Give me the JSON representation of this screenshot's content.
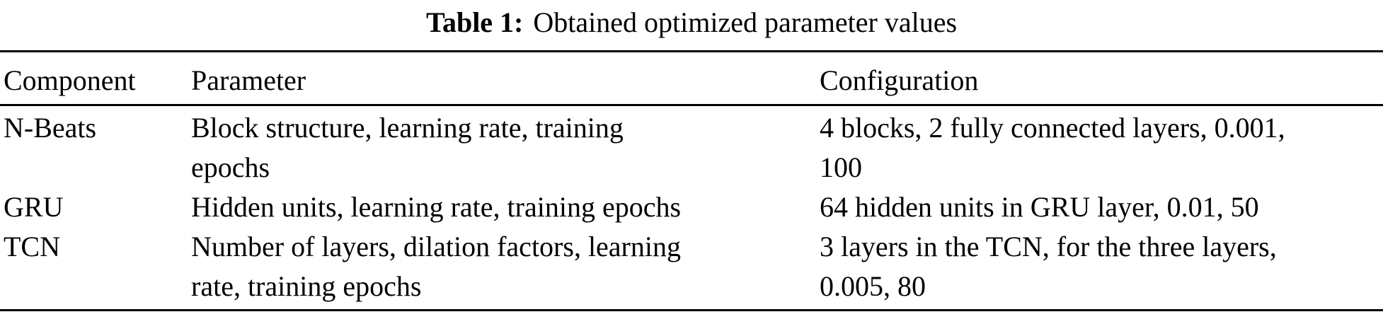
{
  "caption": {
    "label": "Table 1:",
    "text": "Obtained optimized parameter values"
  },
  "columns": [
    "Component",
    "Parameter",
    "Configuration"
  ],
  "rows": [
    {
      "component": "N-Beats",
      "parameter": "Block structure, learning rate, training\nepochs",
      "configuration": "4 blocks, 2 fully connected layers, 0.001,\n100"
    },
    {
      "component": "GRU",
      "parameter": "Hidden units, learning rate, training epochs",
      "configuration": "64 hidden units in GRU layer, 0.01, 50"
    },
    {
      "component": "TCN",
      "parameter": "Number of layers, dilation factors, learning\nrate, training epochs",
      "configuration": "3 layers in the TCN, for the three layers,\n0.005, 80"
    }
  ],
  "colors": {
    "text": "#000000",
    "background": "#ffffff",
    "rule": "#000000"
  }
}
